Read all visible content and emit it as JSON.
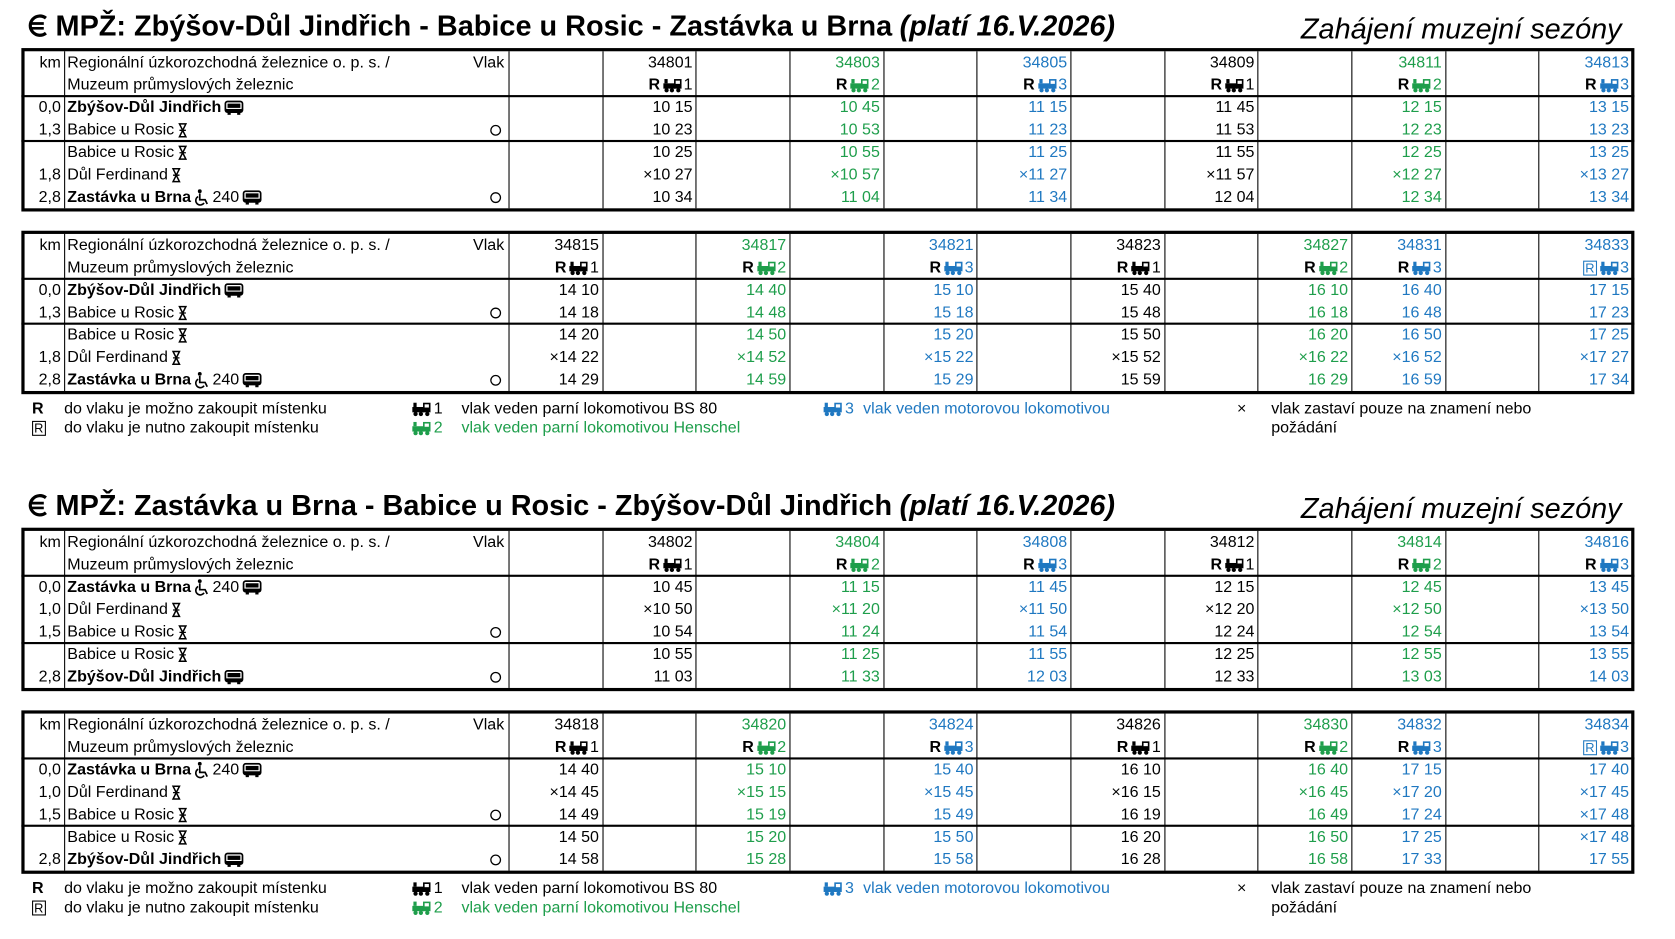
{
  "table_header": {
    "km": "km",
    "operator": "Regionální úzkorozchodná železnice o. p. s. /",
    "museum": "Muzeum průmyslových železnic",
    "train": "Vlak"
  },
  "legend": [
    {
      "symbol": "R",
      "text": "do vlaku je možno zakoupit místenku"
    },
    {
      "symbol": "R",
      "boxed": true,
      "text": "do vlaku je nutno zakoupit místenku"
    },
    {
      "loco": "1",
      "color": "#000000",
      "text": "vlak veden parní lokomotivou BS 80"
    },
    {
      "loco": "2",
      "color": "#1e9e4b",
      "text": "vlak veden parní lokomotivou Henschel"
    },
    {
      "loco": "3",
      "color": "#1f78c1",
      "text": "vlak veden motorovou lokomotivou"
    },
    {
      "symbol": "×",
      "text": "vlak zastaví pouze na znamení nebo požádání"
    }
  ],
  "sections": [
    {
      "title": "MPŽ: Zbýšov-Důl Jindřich - Babice u Rosic - Zastávka u Brna",
      "validity": "(platí 16.V.2026)",
      "event": "Zahájení muzejní sezóny",
      "stations": [
        {
          "km": "0,0",
          "name": "Zbýšov-Důl Jindřich",
          "bold": true,
          "bus": true
        },
        {
          "km": "1,3",
          "name": "Babice u Rosic",
          "request": true,
          "circle": true
        },
        {
          "km": null,
          "name": "Babice u Rosic",
          "request": true,
          "new_group": true
        },
        {
          "km": "1,8",
          "name": "Důl Ferdinand",
          "request": true
        },
        {
          "km": "2,8",
          "name": "Zastávka u Brna",
          "bold": true,
          "wheelchair": true,
          "connection": "240",
          "bus": true,
          "circle": true
        }
      ],
      "tables": [
        {
          "columns": [
            null,
            {
              "number": "34801",
              "badge": "R",
              "loco": "1",
              "color": "#000000",
              "times": [
                "10 15",
                "10 23",
                "10 25",
                "×10 27",
                "10 34"
              ]
            },
            null,
            {
              "number": "34803",
              "badge": "R",
              "loco": "2",
              "color": "#1e9e4b",
              "times": [
                "10 45",
                "10 53",
                "10 55",
                "×10 57",
                "11 04"
              ]
            },
            null,
            {
              "number": "34805",
              "badge": "R",
              "loco": "3",
              "color": "#1f78c1",
              "times": [
                "11 15",
                "11 23",
                "11 25",
                "×11 27",
                "11 34"
              ]
            },
            null,
            {
              "number": "34809",
              "badge": "R",
              "loco": "1",
              "color": "#000000",
              "times": [
                "11 45",
                "11 53",
                "11 55",
                "×11 57",
                "12 04"
              ]
            },
            null,
            {
              "number": "34811",
              "badge": "R",
              "loco": "2",
              "color": "#1e9e4b",
              "times": [
                "12 15",
                "12 23",
                "12 25",
                "×12 27",
                "12 34"
              ]
            },
            null,
            {
              "number": "34813",
              "badge": "R",
              "loco": "3",
              "color": "#1f78c1",
              "times": [
                "13 15",
                "13 23",
                "13 25",
                "×13 27",
                "13 34"
              ]
            }
          ]
        },
        {
          "columns": [
            {
              "number": "34815",
              "badge": "R",
              "loco": "1",
              "color": "#000000",
              "times": [
                "14 10",
                "14 18",
                "14 20",
                "×14 22",
                "14 29"
              ]
            },
            null,
            {
              "number": "34817",
              "badge": "R",
              "loco": "2",
              "color": "#1e9e4b",
              "times": [
                "14 40",
                "14 48",
                "14 50",
                "×14 52",
                "14 59"
              ]
            },
            null,
            {
              "number": "34821",
              "badge": "R",
              "loco": "3",
              "color": "#1f78c1",
              "times": [
                "15 10",
                "15 18",
                "15 20",
                "×15 22",
                "15 29"
              ]
            },
            null,
            {
              "number": "34823",
              "badge": "R",
              "loco": "1",
              "color": "#000000",
              "times": [
                "15 40",
                "15 48",
                "15 50",
                "×15 52",
                "15 59"
              ]
            },
            null,
            {
              "number": "34827",
              "badge": "R",
              "loco": "2",
              "color": "#1e9e4b",
              "times": [
                "16 10",
                "16 18",
                "16 20",
                "×16 22",
                "16 29"
              ]
            },
            {
              "number": "34831",
              "badge": "R",
              "loco": "3",
              "color": "#1f78c1",
              "times": [
                "16 40",
                "16 48",
                "16 50",
                "×16 52",
                "16 59"
              ]
            },
            null,
            {
              "number": "34833",
              "badge": "R",
              "boxed": true,
              "loco": "3",
              "color": "#1f78c1",
              "times": [
                "17 15",
                "17 23",
                "17 25",
                "×17 27",
                "17 34"
              ]
            }
          ]
        }
      ]
    },
    {
      "title": "MPŽ: Zastávka u Brna - Babice u Rosic - Zbýšov-Důl Jindřich",
      "validity": "(platí 16.V.2026)",
      "event": "Zahájení muzejní sezóny",
      "stations": [
        {
          "km": "0,0",
          "name": "Zastávka u Brna",
          "bold": true,
          "wheelchair": true,
          "connection": "240",
          "bus": true
        },
        {
          "km": "1,0",
          "name": "Důl Ferdinand",
          "request": true
        },
        {
          "km": "1,5",
          "name": "Babice u Rosic",
          "request": true,
          "circle": true
        },
        {
          "km": null,
          "name": "Babice u Rosic",
          "request": true,
          "new_group": true
        },
        {
          "km": "2,8",
          "name": "Zbýšov-Důl Jindřich",
          "bold": true,
          "bus": true,
          "circle": true
        }
      ],
      "tables": [
        {
          "columns": [
            null,
            {
              "number": "34802",
              "badge": "R",
              "loco": "1",
              "color": "#000000",
              "times": [
                "10 45",
                "×10 50",
                "10 54",
                "10 55",
                "11 03"
              ]
            },
            null,
            {
              "number": "34804",
              "badge": "R",
              "loco": "2",
              "color": "#1e9e4b",
              "times": [
                "11 15",
                "×11 20",
                "11 24",
                "11 25",
                "11 33"
              ]
            },
            null,
            {
              "number": "34808",
              "badge": "R",
              "loco": "3",
              "color": "#1f78c1",
              "times": [
                "11 45",
                "×11 50",
                "11 54",
                "11 55",
                "12 03"
              ]
            },
            null,
            {
              "number": "34812",
              "badge": "R",
              "loco": "1",
              "color": "#000000",
              "times": [
                "12 15",
                "×12 20",
                "12 24",
                "12 25",
                "12 33"
              ]
            },
            null,
            {
              "number": "34814",
              "badge": "R",
              "loco": "2",
              "color": "#1e9e4b",
              "times": [
                "12 45",
                "×12 50",
                "12 54",
                "12 55",
                "13 03"
              ]
            },
            null,
            {
              "number": "34816",
              "badge": "R",
              "loco": "3",
              "color": "#1f78c1",
              "times": [
                "13 45",
                "×13 50",
                "13 54",
                "13 55",
                "14 03"
              ]
            }
          ]
        },
        {
          "columns": [
            {
              "number": "34818",
              "badge": "R",
              "loco": "1",
              "color": "#000000",
              "times": [
                "14 40",
                "×14 45",
                "14 49",
                "14 50",
                "14 58"
              ]
            },
            null,
            {
              "number": "34820",
              "badge": "R",
              "loco": "2",
              "color": "#1e9e4b",
              "times": [
                "15 10",
                "×15 15",
                "15 19",
                "15 20",
                "15 28"
              ]
            },
            null,
            {
              "number": "34824",
              "badge": "R",
              "loco": "3",
              "color": "#1f78c1",
              "times": [
                "15 40",
                "×15 45",
                "15 49",
                "15 50",
                "15 58"
              ]
            },
            null,
            {
              "number": "34826",
              "badge": "R",
              "loco": "1",
              "color": "#000000",
              "times": [
                "16 10",
                "×16 15",
                "16 19",
                "16 20",
                "16 28"
              ]
            },
            null,
            {
              "number": "34830",
              "badge": "R",
              "loco": "2",
              "color": "#1e9e4b",
              "times": [
                "16 40",
                "×16 45",
                "16 49",
                "16 50",
                "16 58"
              ]
            },
            {
              "number": "34832",
              "badge": "R",
              "loco": "3",
              "color": "#1f78c1",
              "times": [
                "17 15",
                "×17 20",
                "17 24",
                "17 25",
                "17 33"
              ]
            },
            null,
            {
              "number": "34834",
              "badge": "R",
              "boxed": true,
              "loco": "3",
              "color": "#1f78c1",
              "times": [
                "17 40",
                "×17 45",
                "×17 48",
                "×17 48",
                "17 55"
              ]
            }
          ]
        }
      ]
    }
  ]
}
